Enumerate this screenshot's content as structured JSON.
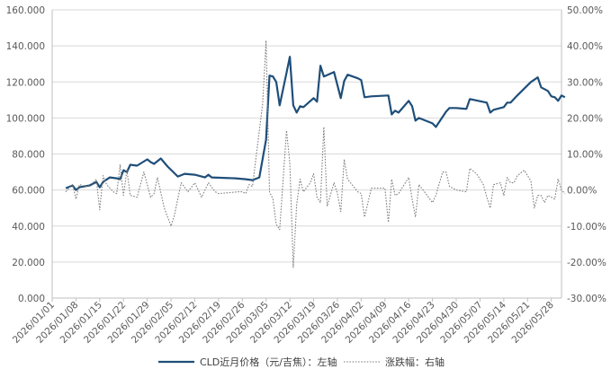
{
  "chart_data": {
    "type": "line",
    "x_dates": [
      "2026/01/01",
      "2026/01/08",
      "2026/01/15",
      "2026/01/22",
      "2026/01/29",
      "2026/02/05",
      "2026/02/12",
      "2026/02/19",
      "2026/02/26",
      "2026/03/05",
      "2026/03/12",
      "2026/03/19",
      "2026/03/26",
      "2026/04/02",
      "2026/04/09",
      "2026/04/16",
      "2026/04/23",
      "2026/04/30",
      "2026/05/07",
      "2026/05/14",
      "2026/05/21",
      "2026/05/28"
    ],
    "x_range": [
      "2026/01/01",
      "2026/05/31"
    ],
    "y_left": {
      "min": 0,
      "max": 160,
      "step": 20,
      "tick_labels": [
        "0.000",
        "20.000",
        "40.000",
        "60.000",
        "80.000",
        "100.000",
        "120.000",
        "140.000",
        "160.000"
      ]
    },
    "y_right": {
      "min": -30,
      "max": 50,
      "step": 10,
      "tick_labels": [
        "-30.00%",
        "-20.00%",
        "-10.00%",
        "0.00%",
        "10.00%",
        "20.00%",
        "30.00%",
        "40.00%",
        "50.00%"
      ]
    },
    "grid": "horizontal",
    "legend_position": "bottom",
    "series": [
      {
        "name": "CLD近月价格（元/吉焦）：左轴",
        "axis": "left",
        "style": "solid",
        "color": "#1F4E79",
        "points": [
          [
            "2026/01/05",
            61.0
          ],
          [
            "2026/01/07",
            62.5
          ],
          [
            "2026/01/08",
            60.0
          ],
          [
            "2026/01/09",
            61.5
          ],
          [
            "2026/01/12",
            62.5
          ],
          [
            "2026/01/14",
            64.5
          ],
          [
            "2026/01/15",
            61.5
          ],
          [
            "2026/01/16",
            64.5
          ],
          [
            "2026/01/18",
            67.0
          ],
          [
            "2026/01/20",
            66.5
          ],
          [
            "2026/01/21",
            66.0
          ],
          [
            "2026/01/22",
            71.0
          ],
          [
            "2026/01/23",
            70.0
          ],
          [
            "2026/01/24",
            74.0
          ],
          [
            "2026/01/26",
            73.5
          ],
          [
            "2026/01/29",
            77.0
          ],
          [
            "2026/01/30",
            75.5
          ],
          [
            "2026/01/31",
            74.5
          ],
          [
            "2026/02/02",
            77.5
          ],
          [
            "2026/02/04",
            73.0
          ],
          [
            "2026/02/07",
            67.5
          ],
          [
            "2026/02/09",
            69.0
          ],
          [
            "2026/02/12",
            68.5
          ],
          [
            "2026/02/15",
            67.0
          ],
          [
            "2026/02/16",
            68.5
          ],
          [
            "2026/02/17",
            67.0
          ],
          [
            "2026/02/24",
            66.5
          ],
          [
            "2026/02/27",
            66.0
          ],
          [
            "2026/03/01",
            65.5
          ],
          [
            "2026/03/03",
            67.0
          ],
          [
            "2026/03/05",
            88.0
          ],
          [
            "2026/03/06",
            123.5
          ],
          [
            "2026/03/07",
            123.0
          ],
          [
            "2026/03/08",
            120.0
          ],
          [
            "2026/03/09",
            107.0
          ],
          [
            "2026/03/11",
            125.0
          ],
          [
            "2026/03/12",
            134.0
          ],
          [
            "2026/03/13",
            107.0
          ],
          [
            "2026/03/14",
            103.0
          ],
          [
            "2026/03/15",
            106.5
          ],
          [
            "2026/03/16",
            106.0
          ],
          [
            "2026/03/19",
            111.0
          ],
          [
            "2026/03/20",
            109.0
          ],
          [
            "2026/03/21",
            129.0
          ],
          [
            "2026/03/22",
            123.0
          ],
          [
            "2026/03/25",
            125.5
          ],
          [
            "2026/03/27",
            111.0
          ],
          [
            "2026/03/28",
            120.5
          ],
          [
            "2026/03/29",
            124.0
          ],
          [
            "2026/04/01",
            122.0
          ],
          [
            "2026/04/02",
            121.0
          ],
          [
            "2026/04/03",
            111.5
          ],
          [
            "2026/04/05",
            112.0
          ],
          [
            "2026/04/10",
            112.5
          ],
          [
            "2026/04/11",
            102.0
          ],
          [
            "2026/04/12",
            104.0
          ],
          [
            "2026/04/13",
            103.0
          ],
          [
            "2026/04/16",
            109.5
          ],
          [
            "2026/04/17",
            106.5
          ],
          [
            "2026/04/18",
            98.5
          ],
          [
            "2026/04/19",
            100.0
          ],
          [
            "2026/04/23",
            97.0
          ],
          [
            "2026/04/24",
            95.0
          ],
          [
            "2026/04/27",
            103.5
          ],
          [
            "2026/04/28",
            105.5
          ],
          [
            "2026/04/30",
            105.5
          ],
          [
            "2026/05/03",
            105.0
          ],
          [
            "2026/05/04",
            110.5
          ],
          [
            "2026/05/09",
            108.5
          ],
          [
            "2026/05/10",
            103.0
          ],
          [
            "2026/05/11",
            104.5
          ],
          [
            "2026/05/14",
            106.0
          ],
          [
            "2026/05/15",
            108.5
          ],
          [
            "2026/05/16",
            108.5
          ],
          [
            "2026/05/18",
            112.5
          ],
          [
            "2026/05/22",
            120.0
          ],
          [
            "2026/05/24",
            122.5
          ],
          [
            "2026/05/25",
            117.0
          ],
          [
            "2026/05/27",
            115.0
          ],
          [
            "2026/05/28",
            112.0
          ],
          [
            "2026/05/29",
            111.5
          ],
          [
            "2026/05/30",
            109.5
          ],
          [
            "2026/05/31",
            112.5
          ],
          [
            "2026/06/01",
            111.5
          ]
        ]
      },
      {
        "name": "涨跌幅：右轴",
        "axis": "right",
        "style": "dotted",
        "color": "#7F7F7F",
        "points": [
          [
            "2026/01/05",
            -0.5
          ],
          [
            "2026/01/07",
            1.5
          ],
          [
            "2026/01/08",
            -2.5
          ],
          [
            "2026/01/09",
            1.5
          ],
          [
            "2026/01/11",
            1.0
          ],
          [
            "2026/01/13",
            2.0
          ],
          [
            "2026/01/14",
            3.0
          ],
          [
            "2026/01/15",
            -5.5
          ],
          [
            "2026/01/16",
            4.0
          ],
          [
            "2026/01/17",
            1.5
          ],
          [
            "2026/01/19",
            -0.5
          ],
          [
            "2026/01/20",
            -1.0
          ],
          [
            "2026/01/21",
            7.0
          ],
          [
            "2026/01/22",
            -1.5
          ],
          [
            "2026/01/23",
            5.5
          ],
          [
            "2026/01/24",
            -1.5
          ],
          [
            "2026/01/26",
            -2.0
          ],
          [
            "2026/01/28",
            5.0
          ],
          [
            "2026/01/30",
            -2.0
          ],
          [
            "2026/01/31",
            -1.0
          ],
          [
            "2026/02/01",
            3.5
          ],
          [
            "2026/02/03",
            -5.0
          ],
          [
            "2026/02/05",
            -10.0
          ],
          [
            "2026/02/06",
            -7.0
          ],
          [
            "2026/02/08",
            2.0
          ],
          [
            "2026/02/10",
            -0.5
          ],
          [
            "2026/02/12",
            2.0
          ],
          [
            "2026/02/14",
            -2.0
          ],
          [
            "2026/02/16",
            2.0
          ],
          [
            "2026/02/18",
            -0.5
          ],
          [
            "2026/02/19",
            -1.0
          ],
          [
            "2026/02/25",
            -0.5
          ],
          [
            "2026/02/26",
            -0.5
          ],
          [
            "2026/02/27",
            -1.0
          ],
          [
            "2026/02/28",
            1.5
          ],
          [
            "2026/03/01",
            1.0
          ],
          [
            "2026/03/04",
            24.0
          ],
          [
            "2026/03/05",
            41.5
          ],
          [
            "2026/03/06",
            -0.5
          ],
          [
            "2026/03/07",
            -2.5
          ],
          [
            "2026/03/08",
            -9.5
          ],
          [
            "2026/03/09",
            -11.0
          ],
          [
            "2026/03/11",
            16.5
          ],
          [
            "2026/03/12",
            7.5
          ],
          [
            "2026/03/13",
            -21.5
          ],
          [
            "2026/03/14",
            -4.0
          ],
          [
            "2026/03/15",
            3.0
          ],
          [
            "2026/03/16",
            -0.5
          ],
          [
            "2026/03/18",
            2.0
          ],
          [
            "2026/03/19",
            4.5
          ],
          [
            "2026/03/20",
            -2.0
          ],
          [
            "2026/03/21",
            -3.5
          ],
          [
            "2026/03/22",
            17.5
          ],
          [
            "2026/03/23",
            -4.5
          ],
          [
            "2026/03/25",
            2.0
          ],
          [
            "2026/03/26",
            -1.0
          ],
          [
            "2026/03/27",
            -6.0
          ],
          [
            "2026/03/28",
            8.5
          ],
          [
            "2026/03/29",
            3.0
          ],
          [
            "2026/04/01",
            -0.5
          ],
          [
            "2026/04/02",
            -1.0
          ],
          [
            "2026/04/03",
            -7.5
          ],
          [
            "2026/04/05",
            0.5
          ],
          [
            "2026/04/09",
            0.5
          ],
          [
            "2026/04/10",
            -9.0
          ],
          [
            "2026/04/11",
            3.0
          ],
          [
            "2026/04/12",
            -1.5
          ],
          [
            "2026/04/13",
            -1.0
          ],
          [
            "2026/04/16",
            3.5
          ],
          [
            "2026/04/17",
            -2.5
          ],
          [
            "2026/04/18",
            -7.5
          ],
          [
            "2026/04/19",
            1.5
          ],
          [
            "2026/04/21",
            -1.0
          ],
          [
            "2026/04/23",
            -3.5
          ],
          [
            "2026/04/24",
            -1.5
          ],
          [
            "2026/04/26",
            5.0
          ],
          [
            "2026/04/27",
            5.0
          ],
          [
            "2026/04/28",
            1.0
          ],
          [
            "2026/04/30",
            0.0
          ],
          [
            "2026/05/03",
            -0.5
          ],
          [
            "2026/05/04",
            6.0
          ],
          [
            "2026/05/06",
            4.5
          ],
          [
            "2026/05/08",
            1.5
          ],
          [
            "2026/05/09",
            -2.0
          ],
          [
            "2026/05/10",
            -5.0
          ],
          [
            "2026/05/11",
            1.5
          ],
          [
            "2026/05/13",
            2.0
          ],
          [
            "2026/05/14",
            -1.5
          ],
          [
            "2026/05/15",
            3.5
          ],
          [
            "2026/05/16",
            2.0
          ],
          [
            "2026/05/17",
            2.0
          ],
          [
            "2026/05/18",
            4.0
          ],
          [
            "2026/05/20",
            5.5
          ],
          [
            "2026/05/22",
            2.5
          ],
          [
            "2026/05/23",
            -5.0
          ],
          [
            "2026/05/24",
            -1.5
          ],
          [
            "2026/05/25",
            -1.5
          ],
          [
            "2026/05/26",
            -3.5
          ],
          [
            "2026/05/27",
            -1.5
          ],
          [
            "2026/05/29",
            -2.5
          ],
          [
            "2026/05/30",
            3.0
          ],
          [
            "2026/05/31",
            0.0
          ],
          [
            "2026/06/01",
            -1.0
          ]
        ]
      }
    ]
  }
}
